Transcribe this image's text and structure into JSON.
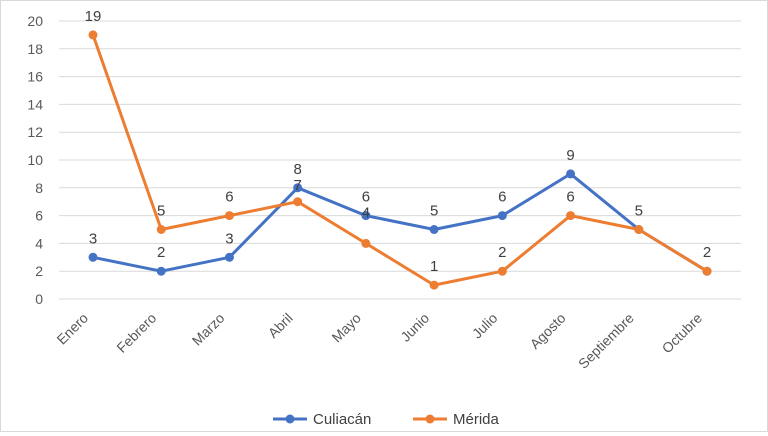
{
  "chart_data": {
    "type": "line",
    "title": "",
    "xlabel": "",
    "ylabel": "",
    "categories": [
      "Enero",
      "Febrero",
      "Marzo",
      "Abril",
      "Mayo",
      "Junio",
      "Julio",
      "Agosto",
      "Septiembre",
      "Octubre"
    ],
    "ylim": [
      0,
      20
    ],
    "yticks": [
      0,
      2,
      4,
      6,
      8,
      10,
      12,
      14,
      16,
      18,
      20
    ],
    "grid": true,
    "legend_position": "bottom",
    "series": [
      {
        "name": "Culiacán",
        "color": "#4472C4",
        "values": [
          3,
          2,
          3,
          8,
          6,
          5,
          6,
          9,
          5,
          2
        ]
      },
      {
        "name": "Mérida",
        "color": "#ED7D31",
        "values": [
          19,
          5,
          6,
          7,
          4,
          1,
          2,
          6,
          5,
          2
        ]
      }
    ]
  }
}
